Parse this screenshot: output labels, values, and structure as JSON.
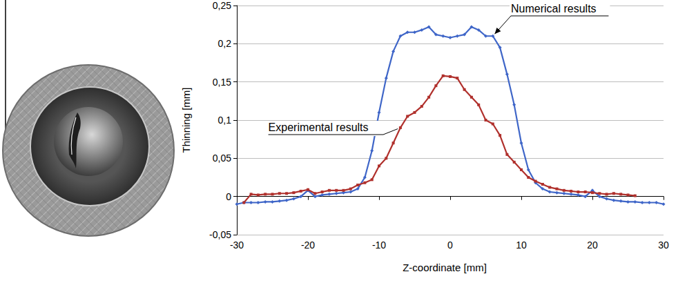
{
  "chart_data": {
    "type": "line",
    "x_label": "Z-coordinate [mm]",
    "y_label": "Thinning [mm]",
    "xlim": [
      -30,
      30
    ],
    "xticks": [
      -30,
      -20,
      -10,
      0,
      10,
      20,
      30
    ],
    "ylim": [
      -0.05,
      0.25
    ],
    "yticks": [
      {
        "value": -0.05,
        "label": "-0,05"
      },
      0,
      {
        "value": 0.05,
        "label": "0,05"
      },
      {
        "value": 0.1,
        "label": "0,1"
      },
      {
        "value": 0.15,
        "label": "0,15"
      },
      {
        "value": 0.2,
        "label": "0,2"
      },
      {
        "value": 0.25,
        "label": "0,25"
      }
    ],
    "grid": true,
    "series": [
      {
        "name": "Numerical results",
        "color": "#3f66c8",
        "marker": "diamond",
        "line_style": "solid",
        "x": [
          -30,
          -29,
          -28,
          -27,
          -26,
          -25,
          -24,
          -23,
          -22,
          -21,
          -20,
          -19,
          -18,
          -17,
          -16,
          -15,
          -14,
          -13,
          -12,
          -11,
          -10,
          -9,
          -8,
          -7,
          -6,
          -5,
          -4,
          -3,
          -2,
          -1,
          0,
          1,
          2,
          3,
          4,
          5,
          6,
          7,
          8,
          9,
          10,
          11,
          12,
          13,
          14,
          15,
          16,
          17,
          18,
          19,
          20,
          21,
          22,
          23,
          24,
          25,
          26,
          27,
          28,
          29,
          30
        ],
        "values": [
          -0.01,
          -0.008,
          -0.008,
          -0.008,
          -0.007,
          -0.007,
          -0.006,
          -0.005,
          -0.003,
          0.0,
          0.008,
          0.0,
          0.002,
          0.003,
          0.004,
          0.005,
          0.006,
          0.01,
          0.025,
          0.06,
          0.11,
          0.155,
          0.19,
          0.21,
          0.215,
          0.215,
          0.218,
          0.222,
          0.212,
          0.21,
          0.208,
          0.21,
          0.212,
          0.222,
          0.218,
          0.21,
          0.21,
          0.195,
          0.16,
          0.12,
          0.07,
          0.035,
          0.018,
          0.01,
          0.006,
          0.005,
          0.004,
          0.003,
          0.002,
          0.0,
          0.008,
          0.0,
          -0.003,
          -0.005,
          -0.006,
          -0.007,
          -0.007,
          -0.008,
          -0.008,
          -0.008,
          -0.01
        ]
      },
      {
        "name": "Experimental results",
        "color": "#b0302c",
        "marker": "square",
        "line_style": "solid",
        "x": [
          -29,
          -28,
          -27,
          -26,
          -25,
          -24,
          -23,
          -22,
          -21,
          -20,
          -19,
          -18,
          -17,
          -16,
          -15,
          -14,
          -13,
          -12,
          -11,
          -10,
          -9,
          -8,
          -7,
          -6,
          -5,
          -4,
          -3,
          -2,
          -1,
          0,
          1,
          2,
          3,
          4,
          5,
          6,
          7,
          8,
          9,
          10,
          11,
          12,
          13,
          14,
          15,
          16,
          17,
          18,
          19,
          20,
          21,
          22,
          23,
          24,
          25,
          26
        ],
        "values": [
          -0.008,
          0.003,
          0.002,
          0.003,
          0.003,
          0.004,
          0.004,
          0.005,
          0.007,
          0.009,
          0.004,
          0.006,
          0.008,
          0.008,
          0.008,
          0.01,
          0.015,
          0.018,
          0.022,
          0.04,
          0.05,
          0.07,
          0.09,
          0.105,
          0.11,
          0.118,
          0.13,
          0.145,
          0.158,
          0.157,
          0.155,
          0.14,
          0.13,
          0.12,
          0.1,
          0.095,
          0.08,
          0.055,
          0.045,
          0.035,
          0.025,
          0.02,
          0.016,
          0.012,
          0.01,
          0.008,
          0.007,
          0.006,
          0.006,
          0.005,
          0.004,
          0.003,
          0.004,
          0.003,
          0.002,
          0.001
        ]
      }
    ]
  }
}
